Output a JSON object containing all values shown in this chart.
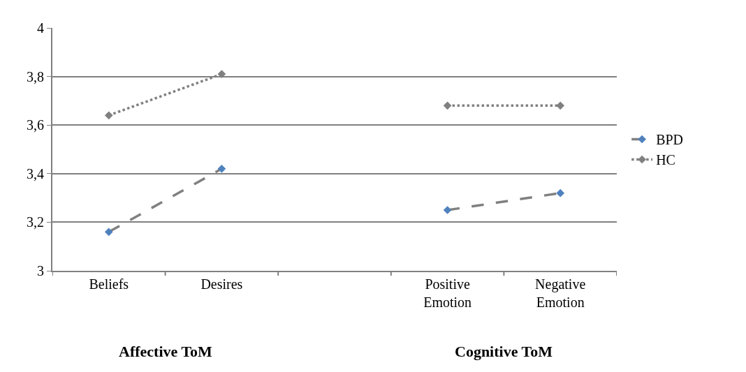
{
  "chart_data": {
    "type": "line",
    "categories": [
      "Beliefs",
      "Desires",
      null,
      "Positive\nEmotion",
      "Negative\nEmotion"
    ],
    "series": [
      {
        "name": "BPD",
        "color": "#808080",
        "colors": [
          "#4f81bd",
          "#4f81bd",
          null,
          "#4f81bd",
          "#4f81bd"
        ],
        "line_style": "dashed",
        "marker": "diamond",
        "values": [
          3.16,
          3.42,
          null,
          3.25,
          3.32
        ]
      },
      {
        "name": "HC",
        "color": "#808080",
        "colors": [
          "#808080",
          "#808080",
          null,
          "#808080",
          "#808080"
        ],
        "line_style": "dotted",
        "marker": "diamond",
        "values": [
          3.64,
          3.81,
          null,
          3.68,
          3.68
        ]
      }
    ],
    "ylim": [
      3,
      4
    ],
    "yticks": [
      3,
      {
        "value": 3.2,
        "label": "3,2"
      },
      {
        "value": 3.4,
        "label": "3,4"
      },
      {
        "value": 3.6,
        "label": "3,6"
      },
      {
        "value": 3.8,
        "label": "3,8"
      },
      4
    ],
    "grid": "y",
    "legend": "right",
    "annotations": [
      "Affective ToM",
      "Cognitive ToM"
    ]
  }
}
